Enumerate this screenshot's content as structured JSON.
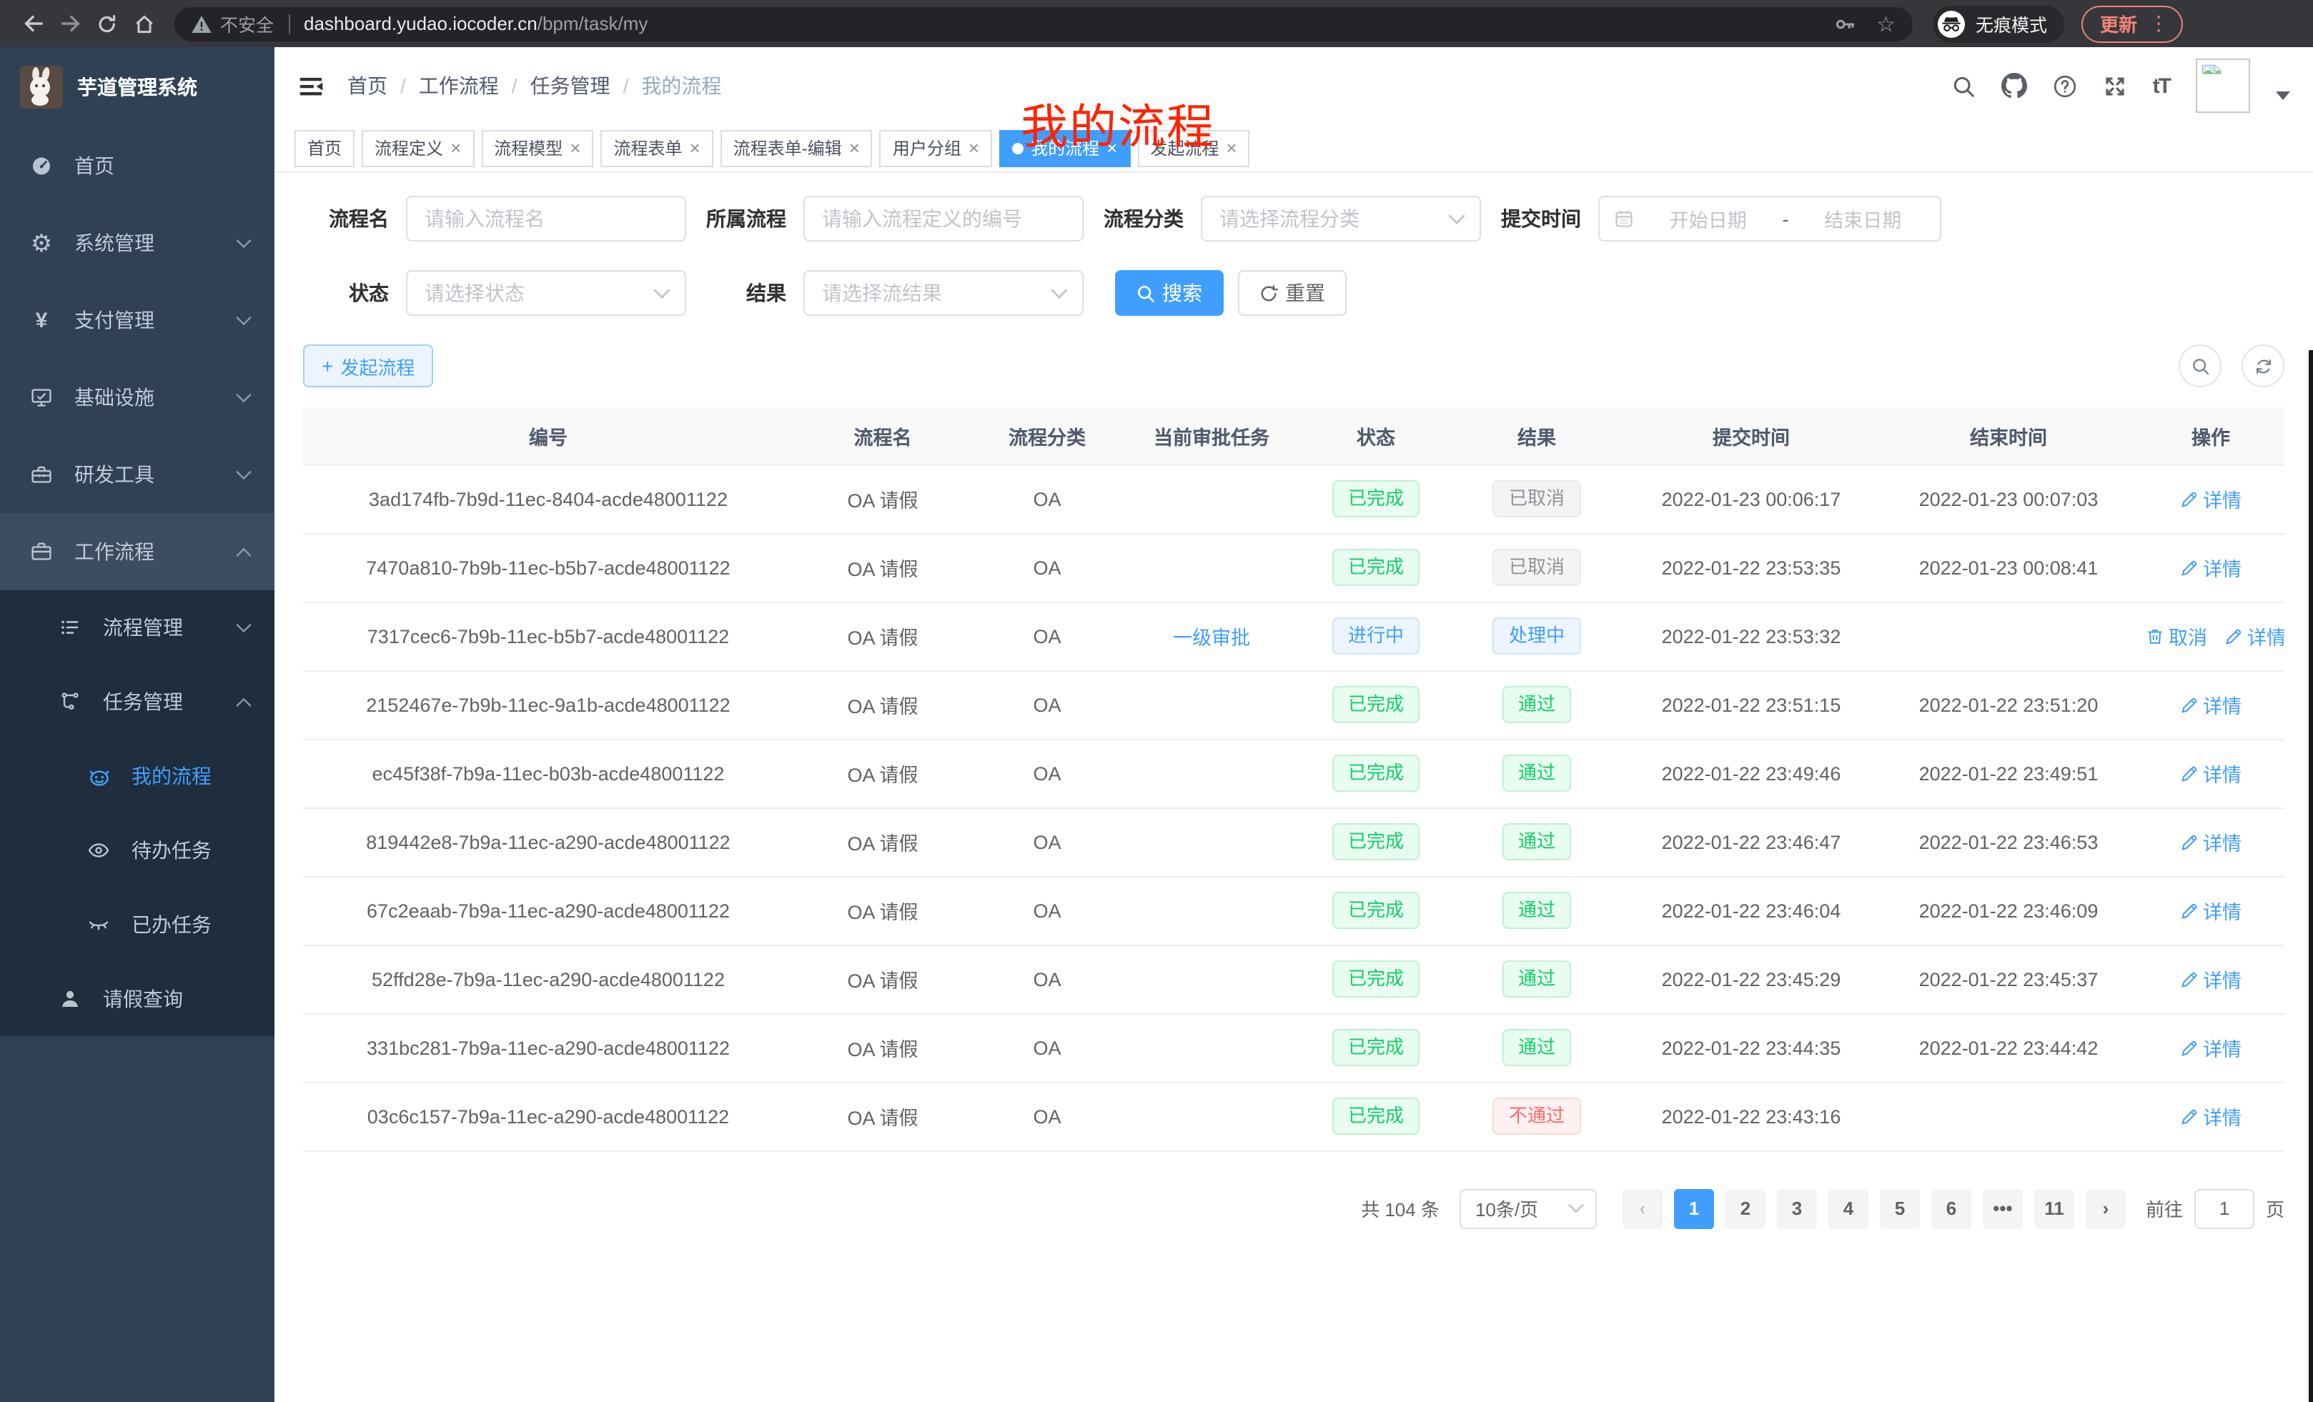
{
  "colors": {
    "accent": "#409eff",
    "success": "#13ce66",
    "danger": "#f56c6c",
    "info": "#909399",
    "annotation": "#ff2400"
  },
  "browser": {
    "security_label": "不安全",
    "url_host": "dashboard.yudao.iocoder.cn",
    "url_path": "/bpm/task/my",
    "star_glyph": "☆",
    "incognito_label": "无痕模式",
    "update_label": "更新",
    "menu_dots_glyph": "⋮"
  },
  "sidebar": {
    "app_title": "芋道管理系统",
    "items": [
      {
        "key": "home",
        "label": "首页",
        "icon": "dashboard-icon",
        "level": 1
      },
      {
        "key": "system",
        "label": "系统管理",
        "icon": "gear-icon",
        "level": 1,
        "chevron": "down"
      },
      {
        "key": "payment",
        "label": "支付管理",
        "icon": "yen-icon",
        "level": 1,
        "chevron": "down"
      },
      {
        "key": "infra",
        "label": "基础设施",
        "icon": "monitor-icon",
        "level": 1,
        "chevron": "down"
      },
      {
        "key": "devtools",
        "label": "研发工具",
        "icon": "toolbox-icon",
        "level": 1,
        "chevron": "down"
      },
      {
        "key": "workflow",
        "label": "工作流程",
        "icon": "briefcase-icon",
        "level": 1,
        "chevron": "up",
        "open": true
      },
      {
        "key": "process-mgmt",
        "label": "流程管理",
        "icon": "list-icon",
        "level": 2,
        "chevron": "down"
      },
      {
        "key": "task-mgmt",
        "label": "任务管理",
        "icon": "tree-icon",
        "level": 2,
        "chevron": "up"
      },
      {
        "key": "my-process",
        "label": "我的流程",
        "icon": "robot-icon",
        "level": 3,
        "active": true
      },
      {
        "key": "todo-tasks",
        "label": "待办任务",
        "icon": "eye-icon",
        "level": 3
      },
      {
        "key": "done-tasks",
        "label": "已办任务",
        "icon": "eye-closed-icon",
        "level": 3
      },
      {
        "key": "leave-query",
        "label": "请假查询",
        "icon": "user-icon",
        "level": 2
      }
    ]
  },
  "header": {
    "breadcrumb": [
      "首页",
      "工作流程",
      "任务管理",
      "我的流程"
    ],
    "separator": "/",
    "annotation": "我的流程",
    "font_size_glyph": "tT"
  },
  "tabs": {
    "items": [
      {
        "label": "首页",
        "closable": false,
        "active": false
      },
      {
        "label": "流程定义",
        "closable": true,
        "active": false
      },
      {
        "label": "流程模型",
        "closable": true,
        "active": false
      },
      {
        "label": "流程表单",
        "closable": true,
        "active": false
      },
      {
        "label": "流程表单-编辑",
        "closable": true,
        "active": false
      },
      {
        "label": "用户分组",
        "closable": true,
        "active": false
      },
      {
        "label": "我的流程",
        "closable": true,
        "active": true
      },
      {
        "label": "发起流程",
        "closable": true,
        "active": false
      }
    ],
    "close_glyph": "×"
  },
  "filters": {
    "fields": [
      {
        "label": "流程名",
        "placeholder": "请输入流程名"
      },
      {
        "label": "所属流程",
        "placeholder": "请输入流程定义的编号"
      },
      {
        "label": "流程分类",
        "placeholder": "请选择流程分类"
      },
      {
        "label": "提交时间",
        "start_placeholder": "开始日期",
        "separator": "-",
        "end_placeholder": "结束日期"
      },
      {
        "label": "状态",
        "placeholder": "请选择状态"
      },
      {
        "label": "结果",
        "placeholder": "请选择流结果"
      }
    ],
    "search_label": "搜索",
    "reset_label": "重置"
  },
  "toolbar": {
    "create_label": "发起流程",
    "plus_glyph": "+"
  },
  "table": {
    "columns": [
      "编号",
      "流程名",
      "流程分类",
      "当前审批任务",
      "状态",
      "结果",
      "提交时间",
      "结束时间",
      "操作"
    ],
    "action_labels": {
      "cancel": "取消",
      "detail": "详情"
    },
    "rows": [
      {
        "id": "3ad174fb-7b9d-11ec-8404-acde48001122",
        "name": "OA 请假",
        "category": "OA",
        "task": "",
        "status": {
          "label": "已完成",
          "type": "success"
        },
        "result": {
          "label": "已取消",
          "type": "info"
        },
        "submit_time": "2022-01-23 00:06:17",
        "end_time": "2022-01-23 00:07:03",
        "actions": [
          "detail"
        ]
      },
      {
        "id": "7470a810-7b9b-11ec-b5b7-acde48001122",
        "name": "OA 请假",
        "category": "OA",
        "task": "",
        "status": {
          "label": "已完成",
          "type": "success"
        },
        "result": {
          "label": "已取消",
          "type": "info"
        },
        "submit_time": "2022-01-22 23:53:35",
        "end_time": "2022-01-23 00:08:41",
        "actions": [
          "detail"
        ]
      },
      {
        "id": "7317cec6-7b9b-11ec-b5b7-acde48001122",
        "name": "OA 请假",
        "category": "OA",
        "task": "一级审批",
        "status": {
          "label": "进行中",
          "type": "primary"
        },
        "result": {
          "label": "处理中",
          "type": "primary"
        },
        "submit_time": "2022-01-22 23:53:32",
        "end_time": "",
        "actions": [
          "cancel",
          "detail"
        ]
      },
      {
        "id": "2152467e-7b9b-11ec-9a1b-acde48001122",
        "name": "OA 请假",
        "category": "OA",
        "task": "",
        "status": {
          "label": "已完成",
          "type": "success"
        },
        "result": {
          "label": "通过",
          "type": "success"
        },
        "submit_time": "2022-01-22 23:51:15",
        "end_time": "2022-01-22 23:51:20",
        "actions": [
          "detail"
        ]
      },
      {
        "id": "ec45f38f-7b9a-11ec-b03b-acde48001122",
        "name": "OA 请假",
        "category": "OA",
        "task": "",
        "status": {
          "label": "已完成",
          "type": "success"
        },
        "result": {
          "label": "通过",
          "type": "success"
        },
        "submit_time": "2022-01-22 23:49:46",
        "end_time": "2022-01-22 23:49:51",
        "actions": [
          "detail"
        ]
      },
      {
        "id": "819442e8-7b9a-11ec-a290-acde48001122",
        "name": "OA 请假",
        "category": "OA",
        "task": "",
        "status": {
          "label": "已完成",
          "type": "success"
        },
        "result": {
          "label": "通过",
          "type": "success"
        },
        "submit_time": "2022-01-22 23:46:47",
        "end_time": "2022-01-22 23:46:53",
        "actions": [
          "detail"
        ]
      },
      {
        "id": "67c2eaab-7b9a-11ec-a290-acde48001122",
        "name": "OA 请假",
        "category": "OA",
        "task": "",
        "status": {
          "label": "已完成",
          "type": "success"
        },
        "result": {
          "label": "通过",
          "type": "success"
        },
        "submit_time": "2022-01-22 23:46:04",
        "end_time": "2022-01-22 23:46:09",
        "actions": [
          "detail"
        ]
      },
      {
        "id": "52ffd28e-7b9a-11ec-a290-acde48001122",
        "name": "OA 请假",
        "category": "OA",
        "task": "",
        "status": {
          "label": "已完成",
          "type": "success"
        },
        "result": {
          "label": "通过",
          "type": "success"
        },
        "submit_time": "2022-01-22 23:45:29",
        "end_time": "2022-01-22 23:45:37",
        "actions": [
          "detail"
        ]
      },
      {
        "id": "331bc281-7b9a-11ec-a290-acde48001122",
        "name": "OA 请假",
        "category": "OA",
        "task": "",
        "status": {
          "label": "已完成",
          "type": "success"
        },
        "result": {
          "label": "通过",
          "type": "success"
        },
        "submit_time": "2022-01-22 23:44:35",
        "end_time": "2022-01-22 23:44:42",
        "actions": [
          "detail"
        ]
      },
      {
        "id": "03c6c157-7b9a-11ec-a290-acde48001122",
        "name": "OA 请假",
        "category": "OA",
        "task": "",
        "status": {
          "label": "已完成",
          "type": "success"
        },
        "result": {
          "label": "不通过",
          "type": "danger"
        },
        "submit_time": "2022-01-22 23:43:16",
        "end_time": "",
        "actions": [
          "detail"
        ]
      }
    ]
  },
  "pagination": {
    "total_label": "共 104 条",
    "page_size_label": "10条/页",
    "prev_glyph": "‹",
    "next_glyph": "›",
    "pages": [
      "1",
      "2",
      "3",
      "4",
      "5",
      "6",
      "•••",
      "11"
    ],
    "active_page": "1",
    "goto_label": "前往",
    "goto_value": "1",
    "goto_suffix": "页"
  }
}
